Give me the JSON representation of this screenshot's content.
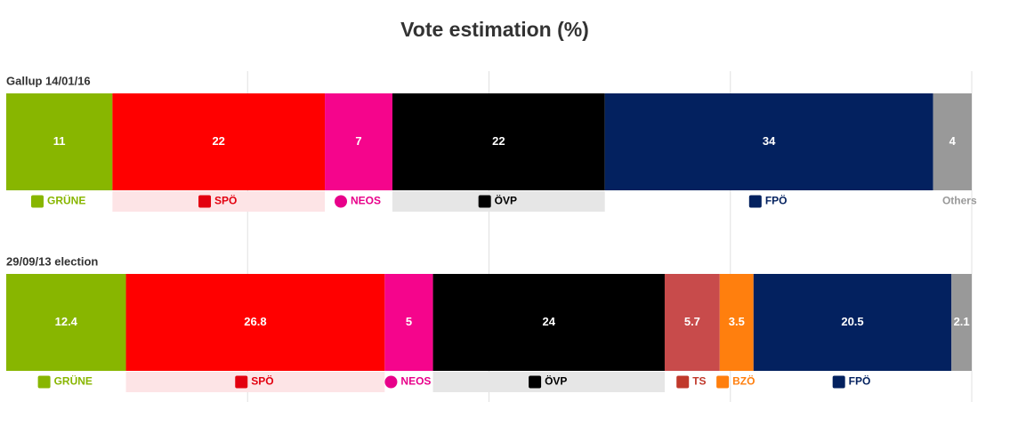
{
  "chart_data": {
    "type": "stacked-bar-horizontal",
    "title": "Vote estimation (%)",
    "categories": [
      "Gallup 14/01/16",
      "29/09/13 election"
    ],
    "xlim": [
      0,
      100
    ],
    "xticks": [
      25,
      50,
      75,
      100
    ],
    "grid": true,
    "series": [
      {
        "name": "GRÜNE",
        "color": "#88b600",
        "label_color": "#88b600",
        "values": [
          11,
          12.4
        ]
      },
      {
        "name": "SPÖ",
        "color": "#ff0000",
        "label_color": "#e3000f",
        "label_bg": "#fde4e6",
        "values": [
          22,
          26.8
        ]
      },
      {
        "name": "NEOS",
        "color": "#f5058c",
        "label_color": "#e8008a",
        "values": [
          7,
          5
        ]
      },
      {
        "name": "ÖVP",
        "color": "#000000",
        "label_color": "#000000",
        "label_bg": "#e6e6e6",
        "values": [
          22,
          24
        ]
      },
      {
        "name": "TS",
        "color": "#c84b4b",
        "label_color": "#c0392b",
        "values": [
          null,
          5.7
        ]
      },
      {
        "name": "BZÖ",
        "color": "#ff7f0e",
        "label_color": "#ff7f0e",
        "values": [
          null,
          3.5
        ]
      },
      {
        "name": "FPÖ",
        "color": "#03215f",
        "label_color": "#03215f",
        "values": [
          34,
          20.5
        ]
      },
      {
        "name": "Others",
        "color": "#999999",
        "label_color": "#999999",
        "show_label": [
          true,
          false
        ],
        "values": [
          4,
          2.1
        ]
      }
    ]
  }
}
